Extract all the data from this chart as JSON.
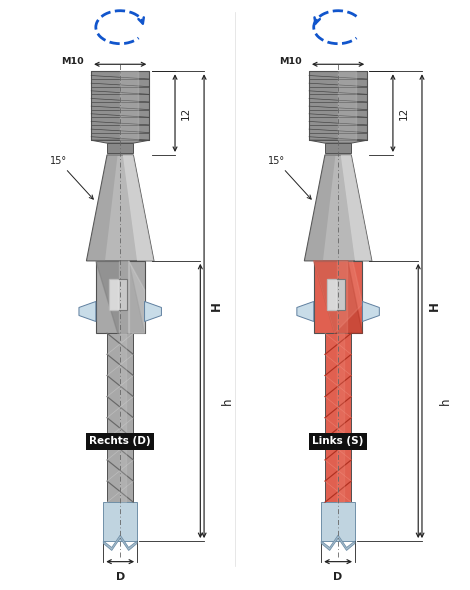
{
  "fig_width": 4.7,
  "fig_height": 5.9,
  "dpi": 100,
  "bg_color": "#ffffff",
  "label_rechts": "Rechts (D)",
  "label_links": "Links (S)",
  "dim_m10": "M10",
  "dim_12": "12",
  "dim_H": "H",
  "dim_h": "h",
  "dim_D": "D",
  "dim_angle": "15°",
  "arrow_color": "#1155cc",
  "steel_light": "#d0d0d0",
  "steel_mid": "#a8a8a8",
  "steel_dark": "#686868",
  "steel_thread": "#909090",
  "copper_main": "#e06050",
  "copper_light": "#f09080",
  "copper_dark": "#b03020",
  "tip_color": "#c0d4e0",
  "tip_edge": "#7090a8",
  "wing_color": "#c8dce8",
  "wing_edge": "#6080a0",
  "label_bg": "#101010",
  "label_fg": "#ffffff",
  "dim_color": "#222222",
  "center_color": "#666666",
  "cone_color": "#b8b8b8",
  "cone_highlight": "#e0e0e0",
  "neck_color": "#989898",
  "shadow_color": "#505050"
}
